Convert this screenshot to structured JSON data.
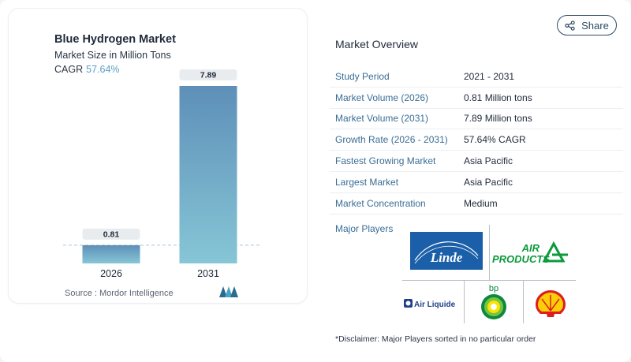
{
  "header": {
    "share_label": "Share",
    "share_icon": "share-icon"
  },
  "chart": {
    "title": "Blue Hydrogen Market",
    "subtitle": "Market Size in Million Tons",
    "cagr_label": "CAGR",
    "cagr_value": "57.64%",
    "source": "Source :  Mordor Intelligence",
    "logo": "mordor-intelligence-logo",
    "accent_color": "#5aa0c8"
  },
  "chart_data": {
    "type": "bar",
    "categories": [
      "2026",
      "2031"
    ],
    "values": [
      0.81,
      7.89
    ],
    "value_labels": [
      "0.81",
      "7.89"
    ],
    "title": "Blue Hydrogen Market",
    "subtitle": "Market Size in Million Tons",
    "xlabel": "",
    "ylabel": "",
    "ylim": [
      0,
      7.89
    ],
    "grid": false,
    "reference_line": "dashed line at 2026 value",
    "colors": {
      "bar_top": "#5e8fb8",
      "bar_bottom": "#86c6d6"
    }
  },
  "overview": {
    "title": "Market Overview",
    "rows": [
      {
        "label": "Study Period",
        "value": "2021 - 2031"
      },
      {
        "label": "Market Volume (2026)",
        "value": "0.81 Million tons"
      },
      {
        "label": "Market Volume (2031)",
        "value": "7.89 Million tons"
      },
      {
        "label": "Growth Rate (2026 - 2031)",
        "value": "57.64% CAGR"
      },
      {
        "label": "Fastest Growing Market",
        "value": "Asia Pacific"
      },
      {
        "label": "Largest Market",
        "value": "Asia Pacific"
      },
      {
        "label": "Market Concentration",
        "value": "Medium"
      }
    ],
    "label_color": "#3a6d96"
  },
  "players": {
    "label": "Major Players",
    "logos": {
      "linde": "Linde",
      "airproducts_1": "AIR",
      "airproducts_2": "PRODUCTS",
      "airliquide": "Air Liquide",
      "bp": "bp",
      "shell": "shell-logo"
    },
    "disclaimer": "*Disclaimer: Major Players sorted in no particular order"
  }
}
